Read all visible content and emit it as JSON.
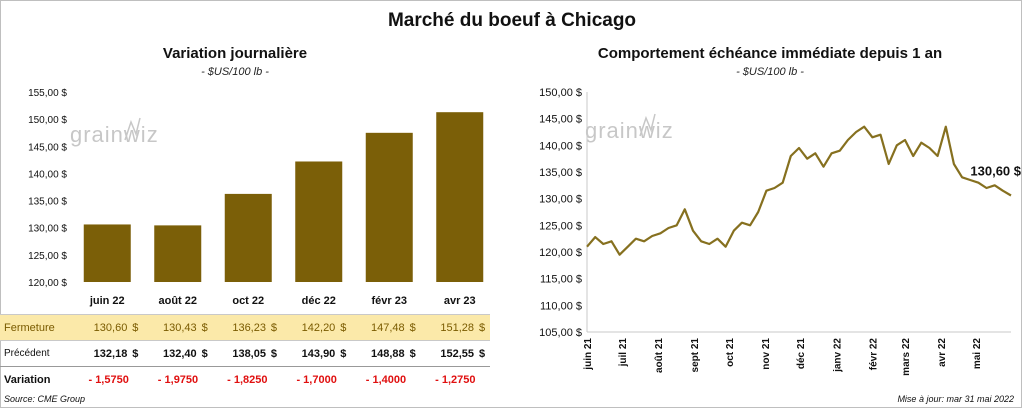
{
  "title": "Marché du boeuf à Chicago",
  "watermark": "grainwiz",
  "colors": {
    "bar": "#7b5f08",
    "line": "#86701f",
    "highlight_row": "#fbe9a9",
    "negative": "#e01010"
  },
  "left": {
    "title": "Variation journalière",
    "unit": "- $US/100 lb -"
  },
  "right": {
    "title": "Comportement échéance immédiate depuis 1 an",
    "unit": "- $US/100 lb -",
    "last_label": "130,60 $"
  },
  "chart_data": [
    {
      "type": "bar",
      "title": "Variation journalière",
      "ylabel": "$US/100 lb",
      "categories": [
        "juin 22",
        "août 22",
        "oct 22",
        "déc 22",
        "févr 23",
        "avr 23"
      ],
      "values": [
        130.6,
        130.43,
        136.23,
        142.2,
        147.48,
        151.28
      ],
      "ylim": [
        120,
        155
      ],
      "yticks": [
        "120,00 $",
        "125,00 $",
        "130,00 $",
        "135,00 $",
        "140,00 $",
        "145,00 $",
        "150,00 $",
        "155,00 $"
      ],
      "grid": false
    },
    {
      "type": "line",
      "title": "Comportement échéance immédiate depuis 1 an",
      "ylabel": "$US/100 lb",
      "ylim": [
        105,
        150
      ],
      "yticks": [
        "105,00 $",
        "110,00 $",
        "115,00 $",
        "120,00 $",
        "125,00 $",
        "130,00 $",
        "135,00 $",
        "140,00 $",
        "145,00 $",
        "150,00 $"
      ],
      "xticks": [
        "juin 21",
        "juil 21",
        "août 21",
        "sept 21",
        "oct 21",
        "nov 21",
        "déc 21",
        "janv 22",
        "févr 22",
        "mars 22",
        "avr 22",
        "mai 22"
      ],
      "x": [
        "2021-06-01",
        "2021-06-08",
        "2021-06-15",
        "2021-06-22",
        "2021-06-29",
        "2021-07-06",
        "2021-07-13",
        "2021-07-20",
        "2021-07-27",
        "2021-08-03",
        "2021-08-10",
        "2021-08-17",
        "2021-08-24",
        "2021-08-31",
        "2021-09-07",
        "2021-09-14",
        "2021-09-21",
        "2021-09-28",
        "2021-10-05",
        "2021-10-12",
        "2021-10-19",
        "2021-10-26",
        "2021-11-02",
        "2021-11-09",
        "2021-11-16",
        "2021-11-23",
        "2021-11-30",
        "2021-12-07",
        "2021-12-14",
        "2021-12-21",
        "2021-12-28",
        "2022-01-04",
        "2022-01-11",
        "2022-01-18",
        "2022-01-25",
        "2022-02-01",
        "2022-02-08",
        "2022-02-15",
        "2022-02-22",
        "2022-03-01",
        "2022-03-08",
        "2022-03-15",
        "2022-03-22",
        "2022-03-29",
        "2022-04-05",
        "2022-04-12",
        "2022-04-19",
        "2022-04-26",
        "2022-05-03",
        "2022-05-10",
        "2022-05-17",
        "2022-05-24",
        "2022-05-31"
      ],
      "y": [
        121.0,
        122.8,
        121.5,
        122.0,
        119.5,
        121.0,
        122.5,
        122.0,
        123.0,
        123.5,
        124.5,
        125.0,
        128.0,
        124.0,
        122.0,
        121.5,
        122.5,
        121.0,
        124.0,
        125.5,
        125.0,
        127.5,
        131.5,
        132.0,
        133.0,
        138.0,
        139.5,
        137.5,
        138.5,
        136.0,
        138.5,
        139.0,
        141.0,
        142.5,
        143.5,
        141.5,
        142.0,
        136.5,
        140.0,
        141.0,
        138.0,
        140.5,
        139.5,
        138.0,
        143.5,
        136.5,
        134.0,
        133.5,
        133.0,
        132.0,
        132.5,
        131.5,
        130.6
      ],
      "grid": false
    }
  ],
  "table": {
    "rows": [
      {
        "label": "Fermeture",
        "values": [
          "130,60",
          "130,43",
          "136,23",
          "142,20",
          "147,48",
          "151,28"
        ],
        "currency": "$"
      },
      {
        "label": "Précédent",
        "values": [
          "132,18",
          "132,40",
          "138,05",
          "143,90",
          "148,88",
          "152,55"
        ],
        "currency": "$"
      },
      {
        "label": "Variation",
        "values": [
          "- 1,5750",
          "- 1,9750",
          "- 1,8250",
          "- 1,7000",
          "- 1,4000",
          "- 1,2750"
        ]
      }
    ]
  },
  "source": "Source: CME Group",
  "updated": "Mise à jour: mar 31 mai 2022"
}
